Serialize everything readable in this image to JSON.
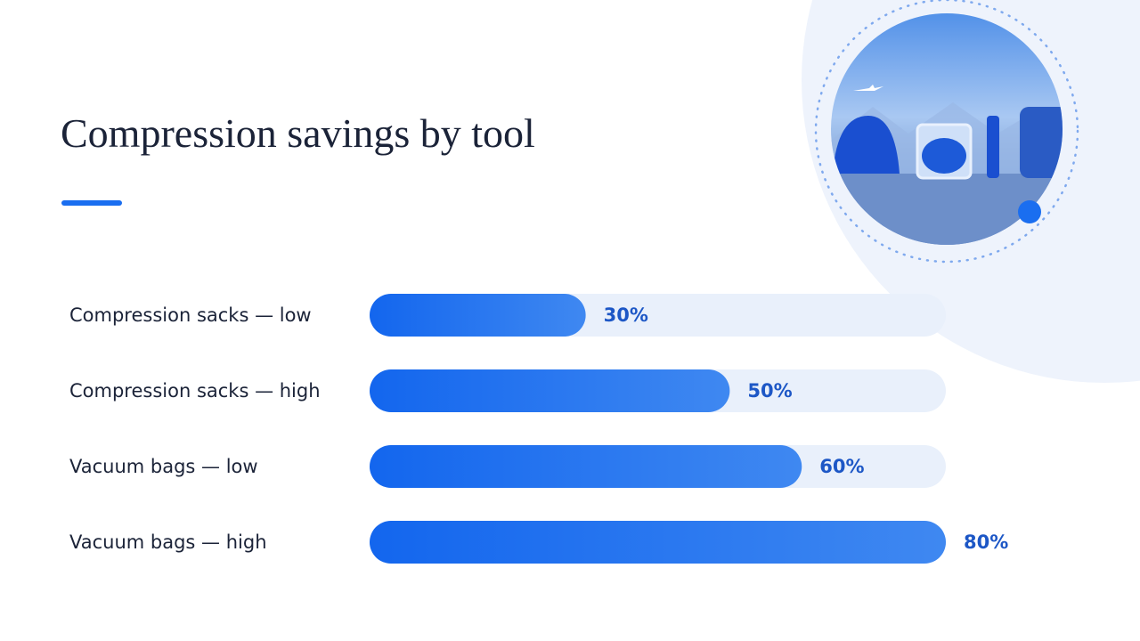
{
  "chart_data": {
    "type": "bar",
    "orientation": "horizontal",
    "title": "Compression savings by tool",
    "categories": [
      "Compression sacks — low",
      "Compression sacks — high",
      "Vacuum bags — low",
      "Vacuum bags — high"
    ],
    "values": [
      30,
      50,
      60,
      80
    ],
    "value_labels": [
      "30%",
      "50%",
      "60%",
      "80%"
    ],
    "color": "#1a6ef0",
    "xlim": [
      0,
      80
    ]
  }
}
